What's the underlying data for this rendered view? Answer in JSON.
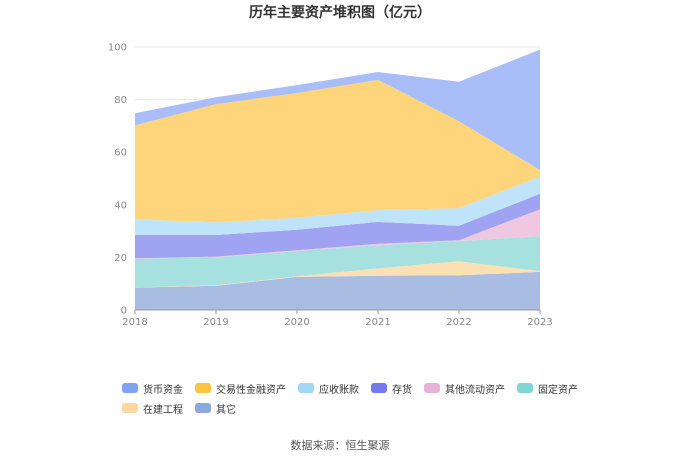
{
  "chart_data": {
    "type": "area",
    "stacked": true,
    "title": "历年主要资产堆积图（亿元）",
    "categories": [
      "2018",
      "2019",
      "2020",
      "2021",
      "2022",
      "2023"
    ],
    "ylim": [
      0,
      100
    ],
    "yticks": [
      0,
      20,
      40,
      60,
      80,
      100
    ],
    "grid": true,
    "legend_position": "bottom",
    "series": [
      {
        "name": "其它",
        "color": "#a9bde3",
        "values": [
          8.5,
          9.2,
          12.6,
          13.0,
          13.2,
          14.5
        ]
      },
      {
        "name": "在建工程",
        "color": "#fde0b2",
        "values": [
          0.1,
          0.2,
          0.2,
          2.8,
          5.3,
          0.3
        ]
      },
      {
        "name": "固定资产",
        "color": "#a6e1e0",
        "values": [
          10.9,
          10.6,
          9.6,
          8.8,
          7.7,
          13.3
        ]
      },
      {
        "name": "其他流动资产",
        "color": "#efc7e1",
        "values": [
          0.2,
          0.3,
          0.3,
          0.6,
          0.3,
          10.2
        ]
      },
      {
        "name": "存货",
        "color": "#a0a3f2",
        "values": [
          8.8,
          8.2,
          7.8,
          8.3,
          5.5,
          5.9
        ]
      },
      {
        "name": "应收账款",
        "color": "#bfe3f8",
        "values": [
          6.0,
          4.8,
          4.5,
          4.5,
          6.7,
          6.5
        ]
      },
      {
        "name": "交易性金融资产",
        "color": "#ffd57c",
        "values": [
          35.7,
          45.0,
          47.5,
          49.5,
          33.1,
          2.5
        ]
      },
      {
        "name": "货币资金",
        "color": "#a9bdf8",
        "values": [
          4.6,
          2.6,
          3.0,
          3.0,
          15.0,
          45.8
        ]
      }
    ],
    "legend": [
      {
        "name": "货币资金",
        "color": "#7fa2f2"
      },
      {
        "name": "交易性金融资产",
        "color": "#ffc43d"
      },
      {
        "name": "应收账款",
        "color": "#9fd9f7"
      },
      {
        "name": "存货",
        "color": "#7479ef"
      },
      {
        "name": "其他流动资产",
        "color": "#e6b2d9"
      },
      {
        "name": "固定资产",
        "color": "#7fd6d4"
      },
      {
        "name": "在建工程",
        "color": "#fcd7a1"
      },
      {
        "name": "其它",
        "color": "#8aa9dc"
      }
    ]
  },
  "footer": {
    "source": "数据来源：恒生聚源"
  }
}
